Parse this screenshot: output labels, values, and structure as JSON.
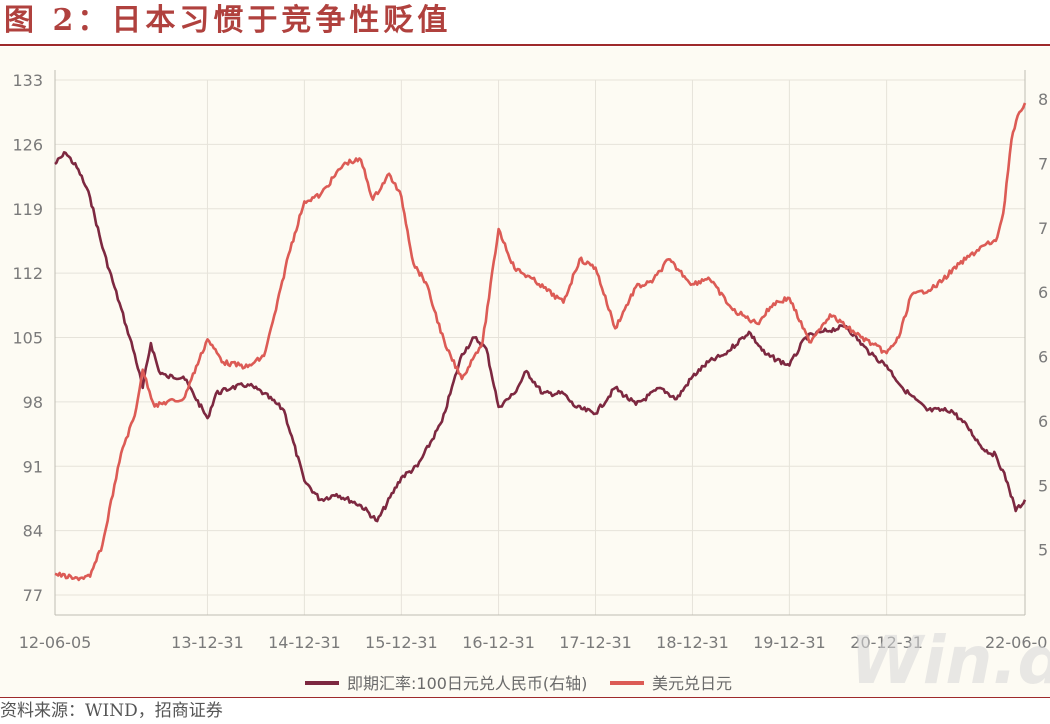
{
  "page": {
    "title": "图 2：日本习惯于竞争性贬值",
    "source": "资料来源：WIND，招商证券",
    "watermark": "Win.d"
  },
  "colors": {
    "rmb_series": "#7d2840",
    "usd_series": "#dc5b55",
    "accent": "#9e2a2b"
  },
  "chart_data": {
    "type": "line",
    "title": "图 2：日本习惯于竞争性贬值",
    "x_start": "2012-06-05",
    "x_end": "2022-06-05",
    "x_tick_labels": [
      "12-06-05",
      "13-12-31",
      "14-12-31",
      "15-12-31",
      "16-12-31",
      "17-12-31",
      "18-12-31",
      "19-12-31",
      "20-12-31",
      "22-06-0"
    ],
    "y_left": {
      "ticks": [
        77,
        84,
        91,
        98,
        105,
        112,
        119,
        126,
        133
      ],
      "range": [
        77,
        133
      ]
    },
    "y_right": {
      "ticks": [
        "4",
        "5",
        "5",
        "6",
        "6",
        "6",
        "7",
        "7",
        "8"
      ],
      "range": [
        4.2,
        8.8
      ]
    },
    "grid": true,
    "legend_position": "bottom",
    "series": [
      {
        "name": "即期汇率:100日元兑人民币(右轴)",
        "axis": "right",
        "color": "#7d2840",
        "points": [
          [
            "2012-06-05",
            8.05
          ],
          [
            "2012-07-15",
            8.15
          ],
          [
            "2012-09-01",
            8.0
          ],
          [
            "2012-10-15",
            7.75
          ],
          [
            "2012-12-01",
            7.3
          ],
          [
            "2013-01-15",
            6.95
          ],
          [
            "2013-03-01",
            6.6
          ],
          [
            "2013-04-01",
            6.35
          ],
          [
            "2013-05-01",
            6.05
          ],
          [
            "2013-06-01",
            6.45
          ],
          [
            "2013-07-01",
            6.2
          ],
          [
            "2013-08-01",
            6.15
          ],
          [
            "2013-10-01",
            6.15
          ],
          [
            "2013-12-31",
            5.78
          ],
          [
            "2014-02-01",
            6.0
          ],
          [
            "2014-04-01",
            6.05
          ],
          [
            "2014-06-01",
            6.08
          ],
          [
            "2014-08-01",
            6.0
          ],
          [
            "2014-10-15",
            5.85
          ],
          [
            "2014-12-31",
            5.22
          ],
          [
            "2015-03-01",
            5.05
          ],
          [
            "2015-05-01",
            5.1
          ],
          [
            "2015-08-01",
            5.0
          ],
          [
            "2015-10-01",
            4.86
          ],
          [
            "2015-12-31",
            5.25
          ],
          [
            "2016-03-01",
            5.35
          ],
          [
            "2016-06-01",
            5.75
          ],
          [
            "2016-08-15",
            6.35
          ],
          [
            "2016-10-01",
            6.5
          ],
          [
            "2016-11-15",
            6.4
          ],
          [
            "2016-12-31",
            5.88
          ],
          [
            "2017-03-01",
            6.0
          ],
          [
            "2017-04-15",
            6.2
          ],
          [
            "2017-06-15",
            6.0
          ],
          [
            "2017-09-01",
            6.0
          ],
          [
            "2017-10-15",
            5.88
          ],
          [
            "2017-12-31",
            5.82
          ],
          [
            "2018-03-15",
            6.05
          ],
          [
            "2018-06-01",
            5.9
          ],
          [
            "2018-09-01",
            6.05
          ],
          [
            "2018-11-01",
            5.95
          ],
          [
            "2018-12-31",
            6.15
          ],
          [
            "2019-03-01",
            6.28
          ],
          [
            "2019-05-01",
            6.35
          ],
          [
            "2019-08-01",
            6.55
          ],
          [
            "2019-10-01",
            6.35
          ],
          [
            "2019-12-31",
            6.25
          ],
          [
            "2020-03-01",
            6.5
          ],
          [
            "2020-05-01",
            6.55
          ],
          [
            "2020-08-01",
            6.6
          ],
          [
            "2020-11-01",
            6.35
          ],
          [
            "2020-12-31",
            6.25
          ],
          [
            "2021-03-01",
            6.05
          ],
          [
            "2021-06-01",
            5.85
          ],
          [
            "2021-09-01",
            5.85
          ],
          [
            "2021-11-01",
            5.7
          ],
          [
            "2021-12-31",
            5.5
          ],
          [
            "2022-02-15",
            5.45
          ],
          [
            "2022-04-01",
            5.2
          ],
          [
            "2022-05-01",
            4.95
          ],
          [
            "2022-06-05",
            5.05
          ]
        ]
      },
      {
        "name": "美元兑日元",
        "axis": "left",
        "color": "#dc5b55",
        "points": [
          [
            "2012-06-05",
            79.3
          ],
          [
            "2012-08-15",
            78.8
          ],
          [
            "2012-10-15",
            79.0
          ],
          [
            "2012-12-01",
            82.5
          ],
          [
            "2013-01-15",
            89.0
          ],
          [
            "2013-02-15",
            93.0
          ],
          [
            "2013-04-01",
            96.5
          ],
          [
            "2013-05-01",
            101.5
          ],
          [
            "2013-06-15",
            97.5
          ],
          [
            "2013-08-01",
            98.0
          ],
          [
            "2013-10-01",
            98.3
          ],
          [
            "2013-12-31",
            104.8
          ],
          [
            "2014-03-01",
            102.3
          ],
          [
            "2014-06-01",
            101.8
          ],
          [
            "2014-08-01",
            103.0
          ],
          [
            "2014-09-15",
            108.0
          ],
          [
            "2014-11-01",
            114.0
          ],
          [
            "2014-12-31",
            119.8
          ],
          [
            "2015-03-01",
            120.5
          ],
          [
            "2015-06-01",
            124.0
          ],
          [
            "2015-08-01",
            124.3
          ],
          [
            "2015-09-15",
            120.0
          ],
          [
            "2015-11-15",
            122.8
          ],
          [
            "2015-12-31",
            120.3
          ],
          [
            "2016-02-15",
            113.0
          ],
          [
            "2016-04-01",
            111.0
          ],
          [
            "2016-06-15",
            104.0
          ],
          [
            "2016-08-15",
            100.5
          ],
          [
            "2016-10-01",
            103.0
          ],
          [
            "2016-11-01",
            104.5
          ],
          [
            "2016-12-31",
            116.8
          ],
          [
            "2017-03-01",
            112.5
          ],
          [
            "2017-05-01",
            111.5
          ],
          [
            "2017-06-01",
            110.8
          ],
          [
            "2017-09-01",
            108.8
          ],
          [
            "2017-11-01",
            113.5
          ],
          [
            "2017-12-31",
            112.6
          ],
          [
            "2018-03-15",
            106.0
          ],
          [
            "2018-06-01",
            110.5
          ],
          [
            "2018-08-01",
            111.0
          ],
          [
            "2018-10-01",
            113.5
          ],
          [
            "2018-12-31",
            110.8
          ],
          [
            "2019-03-01",
            111.5
          ],
          [
            "2019-06-01",
            108.0
          ],
          [
            "2019-09-01",
            106.5
          ],
          [
            "2019-11-01",
            108.7
          ],
          [
            "2019-12-31",
            109.3
          ],
          [
            "2020-03-15",
            104.5
          ],
          [
            "2020-06-01",
            107.5
          ],
          [
            "2020-09-01",
            105.5
          ],
          [
            "2020-12-31",
            103.3
          ],
          [
            "2021-02-15",
            105.0
          ],
          [
            "2021-04-01",
            109.5
          ],
          [
            "2021-07-01",
            110.5
          ],
          [
            "2021-10-01",
            113.0
          ],
          [
            "2021-12-31",
            115.0
          ],
          [
            "2022-02-15",
            115.5
          ],
          [
            "2022-03-15",
            118.5
          ],
          [
            "2022-04-15",
            126.5
          ],
          [
            "2022-05-15",
            129.5
          ],
          [
            "2022-06-05",
            130.5
          ]
        ]
      }
    ]
  }
}
